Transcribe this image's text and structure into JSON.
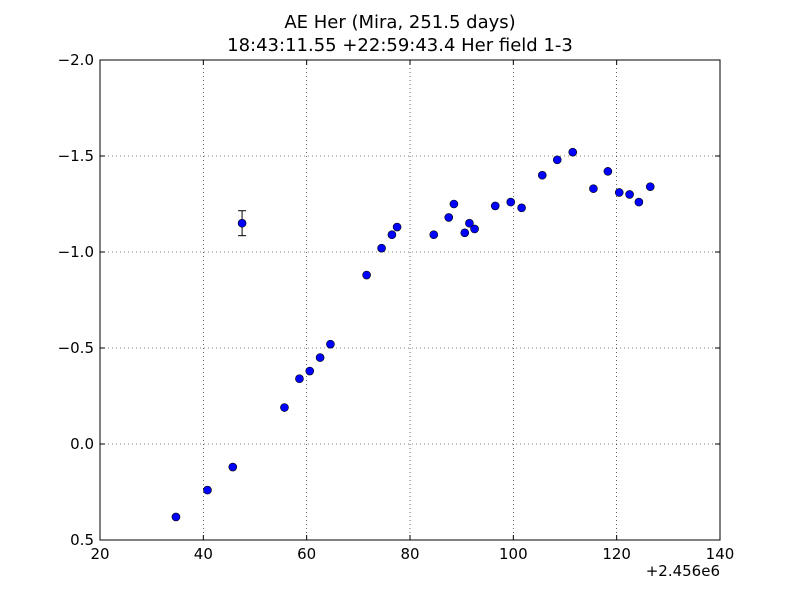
{
  "chart_data": {
    "type": "scatter",
    "title": "AE Her (Mira, 251.5 days)",
    "subtitle": "18:43:11.55 +22:59:43.4 Her field 1-3",
    "xlabel": "",
    "ylabel": "",
    "x_offset_label": "+2.456e6",
    "xlim": [
      20,
      140
    ],
    "ylim": [
      0.5,
      -2.0
    ],
    "y_inverted": true,
    "x_ticks": [
      20,
      40,
      60,
      80,
      100,
      120,
      140
    ],
    "x_tick_labels": [
      "20",
      "40",
      "60",
      "80",
      "100",
      "120",
      "140"
    ],
    "y_ticks": [
      -2.0,
      -1.5,
      -1.0,
      -0.5,
      0.0,
      0.5
    ],
    "y_tick_labels": [
      "−2.0",
      "−1.5",
      "−1.0",
      "−0.5",
      "0.0",
      "0.5"
    ],
    "grid": true,
    "marker_color": "#0000ff",
    "series": [
      {
        "points": [
          {
            "x": 34.7,
            "y": 0.38
          },
          {
            "x": 40.8,
            "y": 0.24
          },
          {
            "x": 45.7,
            "y": 0.12
          },
          {
            "x": 47.5,
            "y": -1.15,
            "yerr": 0.065
          },
          {
            "x": 55.7,
            "y": -0.19
          },
          {
            "x": 58.6,
            "y": -0.34
          },
          {
            "x": 60.6,
            "y": -0.38
          },
          {
            "x": 62.6,
            "y": -0.45
          },
          {
            "x": 64.6,
            "y": -0.52
          },
          {
            "x": 71.6,
            "y": -0.88
          },
          {
            "x": 74.5,
            "y": -1.02
          },
          {
            "x": 76.5,
            "y": -1.09
          },
          {
            "x": 77.5,
            "y": -1.13
          },
          {
            "x": 84.6,
            "y": -1.09
          },
          {
            "x": 87.5,
            "y": -1.18
          },
          {
            "x": 88.5,
            "y": -1.25
          },
          {
            "x": 90.6,
            "y": -1.1
          },
          {
            "x": 91.5,
            "y": -1.15
          },
          {
            "x": 92.5,
            "y": -1.12
          },
          {
            "x": 96.5,
            "y": -1.24
          },
          {
            "x": 99.5,
            "y": -1.26
          },
          {
            "x": 101.6,
            "y": -1.23
          },
          {
            "x": 105.6,
            "y": -1.4
          },
          {
            "x": 108.5,
            "y": -1.48
          },
          {
            "x": 111.5,
            "y": -1.52
          },
          {
            "x": 115.5,
            "y": -1.33
          },
          {
            "x": 118.3,
            "y": -1.42
          },
          {
            "x": 120.5,
            "y": -1.31
          },
          {
            "x": 122.5,
            "y": -1.3
          },
          {
            "x": 124.3,
            "y": -1.26
          },
          {
            "x": 126.5,
            "y": -1.34
          }
        ]
      }
    ]
  }
}
